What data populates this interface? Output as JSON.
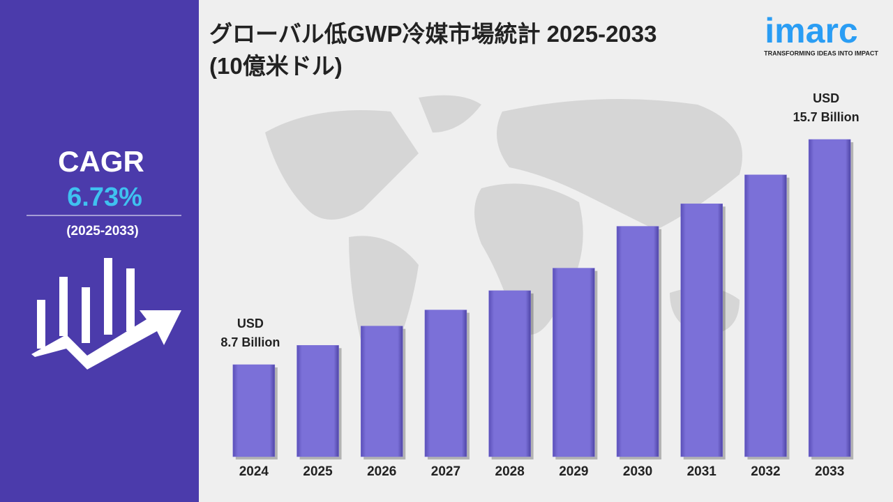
{
  "chart_data": {
    "type": "bar",
    "title": "グローバル低GWP冷媒市場統計 2025-2033\n(10億米ドル)",
    "categories": [
      "2024",
      "2025",
      "2026",
      "2027",
      "2028",
      "2029",
      "2030",
      "2031",
      "2032",
      "2033"
    ],
    "values": [
      8.7,
      9.3,
      9.9,
      10.4,
      11.0,
      11.7,
      13.0,
      13.7,
      14.6,
      15.7
    ],
    "value_labels": [
      "USD\n8.7 Billion",
      null,
      null,
      null,
      null,
      null,
      null,
      null,
      null,
      "USD\n15.7 Billion"
    ],
    "color": "#7b70d8"
  },
  "cagr": {
    "label": "CAGR",
    "value": "6.73%",
    "period": "(2025-2033)"
  },
  "logo": {
    "name": "imarc",
    "tagline": "TRANSFORMING IDEAS INTO IMPACT"
  }
}
